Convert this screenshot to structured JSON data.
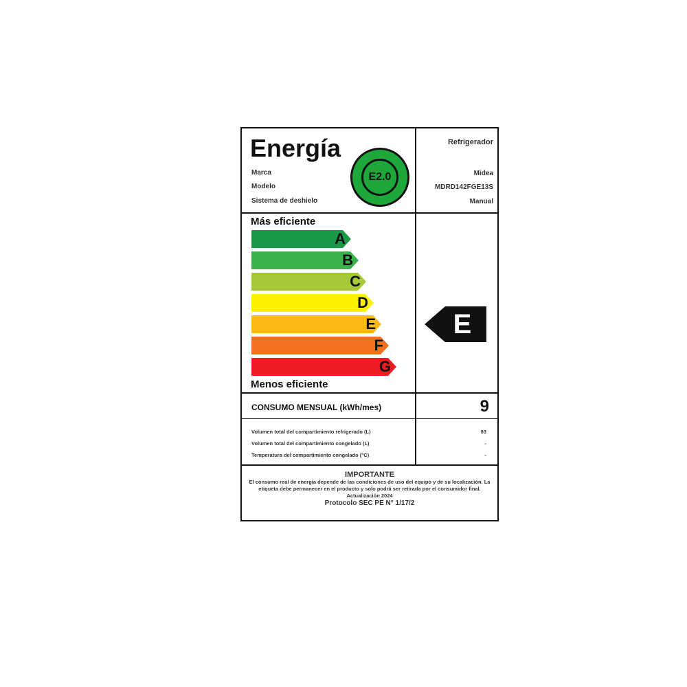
{
  "header": {
    "title": "Energía",
    "fields": [
      {
        "label": "Marca",
        "value": "Midea"
      },
      {
        "label": "Modelo",
        "value": "MDRD142FGE13S"
      },
      {
        "label": "Sistema de deshielo",
        "value": "Manual"
      }
    ],
    "product_type": "Refrigerador",
    "badge": "E2.0",
    "badge_color": "#1ea83c"
  },
  "scale": {
    "top_label": "Más eficiente",
    "bottom_label": "Menos eficiente",
    "classes": [
      {
        "letter": "A",
        "color": "#1a9a48"
      },
      {
        "letter": "B",
        "color": "#3cb34a"
      },
      {
        "letter": "C",
        "color": "#a6c93a"
      },
      {
        "letter": "D",
        "color": "#fff200"
      },
      {
        "letter": "E",
        "color": "#fdb913"
      },
      {
        "letter": "F",
        "color": "#f37021"
      },
      {
        "letter": "G",
        "color": "#ed1c24"
      }
    ],
    "rating": "E"
  },
  "consumo": {
    "label": "CONSUMO MENSUAL (kWh/mes)",
    "value": "9"
  },
  "specs": [
    {
      "label": "Volumen total del compartimiento refrigerado (L)",
      "value": "93"
    },
    {
      "label": "Volumen total del compartimiento congelado (L)",
      "value": "-"
    },
    {
      "label": "Temperatura del compartimiento congelado (°C)",
      "value": "-"
    }
  ],
  "important": {
    "title": "IMPORTANTE",
    "text": "El consumo real de energía depende de las condiciones de uso del equipo y de su localización. La etiqueta debe permanecer en el producto y solo podrá ser retirada por el consumidor final. Actualización 2024",
    "protocol": "Protocolo SEC PE N° 1/17/2"
  }
}
